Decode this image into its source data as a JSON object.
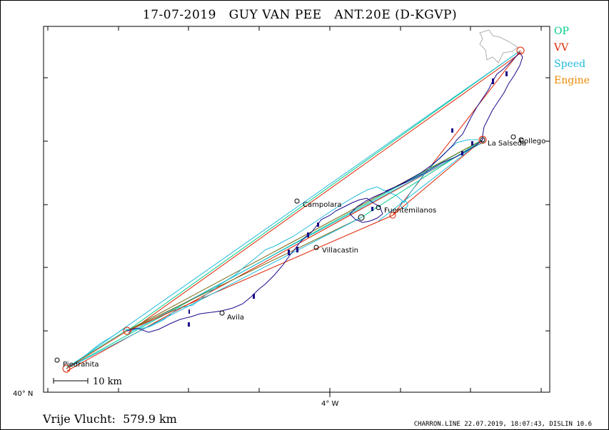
{
  "header": {
    "title": "17-07-2019   GUY VAN PEE   ANT.20E (D-KGVP)"
  },
  "legend": {
    "items": [
      {
        "label": "OP",
        "color": "#00cc88"
      },
      {
        "label": "VV",
        "color": "#dd2200"
      },
      {
        "label": "Speed",
        "color": "#22bbdd"
      },
      {
        "label": "Engine",
        "color": "#ee8800"
      }
    ]
  },
  "axes": {
    "lat_label": "40° N",
    "lon_label": "4° W"
  },
  "scale_bar": {
    "label": "10 km"
  },
  "places": [
    {
      "name": "Piedrahita"
    },
    {
      "name": "Avila"
    },
    {
      "name": "Villacastin"
    },
    {
      "name": "Campolara"
    },
    {
      "name": "Fuentemilanos"
    },
    {
      "name": "La Salseda"
    },
    {
      "name": "Collego"
    }
  ],
  "footer": {
    "distance_label": "Vrije Vlucht:  579.9 km",
    "credit": "CHARRON.LINE 22.07.2019, 18:07:43, DISLIN 10.6"
  },
  "colors": {
    "track": "#1a0a8a",
    "op_line": "#00cc88",
    "vv_line": "#dd2200",
    "speed_line": "#22bbdd",
    "engine_line": "#ee8800",
    "olive_line": "#7a6a1a"
  }
}
